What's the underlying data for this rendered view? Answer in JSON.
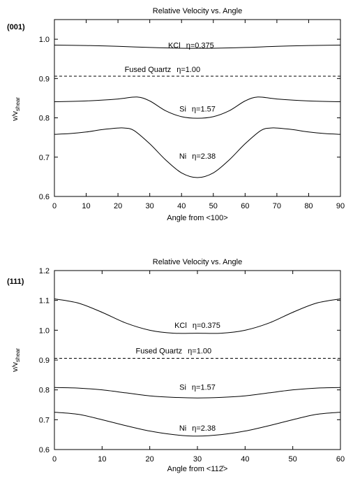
{
  "chart_data": [
    {
      "type": "line",
      "panel_label": "(001)",
      "title": "Relative Velocity vs. Angle",
      "xlabel": "Angle from <100>",
      "ylabel": {
        "main": "v/v",
        "sub": "shear"
      },
      "xlim": [
        0,
        90
      ],
      "ylim": [
        0.6,
        1.05
      ],
      "xticks": [
        "0",
        "10",
        "20",
        "30",
        "40",
        "50",
        "60",
        "70",
        "80",
        "90"
      ],
      "yticks": [
        "0.6",
        "0.7",
        "0.8",
        "0.9",
        "1.0"
      ],
      "grid": false,
      "series": [
        {
          "name": "KCl",
          "eta_label": "η=0.375",
          "dashed": false,
          "x": [
            0,
            10,
            20,
            30,
            40,
            45,
            50,
            60,
            70,
            80,
            90
          ],
          "y": [
            0.985,
            0.984,
            0.982,
            0.979,
            0.977,
            0.977,
            0.977,
            0.979,
            0.982,
            0.984,
            0.985
          ],
          "label_at": [
            43,
            0.978
          ]
        },
        {
          "name": "Fused Quartz",
          "eta_label": "η=1.00",
          "dashed": true,
          "x": [
            0,
            90
          ],
          "y": [
            0.906,
            0.906
          ],
          "label_at": [
            34,
            0.917
          ]
        },
        {
          "name": "Si",
          "eta_label": "η=1.57",
          "dashed": false,
          "x": [
            0,
            10,
            20,
            26,
            30,
            35,
            40,
            45,
            50,
            55,
            60,
            64,
            70,
            80,
            90
          ],
          "y": [
            0.841,
            0.843,
            0.848,
            0.853,
            0.843,
            0.818,
            0.803,
            0.799,
            0.803,
            0.818,
            0.843,
            0.853,
            0.848,
            0.843,
            0.841
          ],
          "label_at": [
            45,
            0.816
          ]
        },
        {
          "name": "Ni",
          "eta_label": "η=2.38",
          "dashed": false,
          "x": [
            0,
            5,
            10,
            15,
            20,
            22,
            25,
            30,
            35,
            40,
            45,
            50,
            55,
            60,
            65,
            68,
            70,
            75,
            80,
            85,
            90
          ],
          "y": [
            0.758,
            0.76,
            0.764,
            0.77,
            0.774,
            0.774,
            0.768,
            0.734,
            0.693,
            0.66,
            0.648,
            0.66,
            0.693,
            0.734,
            0.768,
            0.774,
            0.774,
            0.77,
            0.764,
            0.76,
            0.758
          ],
          "label_at": [
            45,
            0.696
          ]
        }
      ]
    },
    {
      "type": "line",
      "panel_label": "(111)",
      "title": "Relative Velocity vs. Angle",
      "xlabel": "Angle from <112̄>",
      "ylabel": {
        "main": "v/v",
        "sub": "shear"
      },
      "xlim": [
        0,
        60
      ],
      "ylim": [
        0.6,
        1.2
      ],
      "xticks": [
        "0",
        "10",
        "20",
        "30",
        "40",
        "50",
        "60"
      ],
      "yticks": [
        "0.6",
        "0.7",
        "0.8",
        "0.9",
        "1.0",
        "1.1",
        "1.2"
      ],
      "grid": false,
      "series": [
        {
          "name": "KCl",
          "eta_label": "η=0.375",
          "dashed": false,
          "x": [
            0,
            5,
            10,
            15,
            20,
            25,
            30,
            35,
            40,
            45,
            50,
            55,
            60
          ],
          "y": [
            1.105,
            1.091,
            1.06,
            1.024,
            1.0,
            0.99,
            0.99,
            0.99,
            1.0,
            1.024,
            1.06,
            1.091,
            1.105
          ],
          "label_at": [
            30,
            1.008
          ]
        },
        {
          "name": "Fused Quartz",
          "eta_label": "η=1.00",
          "dashed": true,
          "x": [
            0,
            60
          ],
          "y": [
            0.906,
            0.906
          ],
          "label_at": [
            25,
            0.922
          ]
        },
        {
          "name": "Si",
          "eta_label": "η=1.57",
          "dashed": false,
          "x": [
            0,
            5,
            10,
            15,
            20,
            25,
            30,
            35,
            40,
            45,
            50,
            55,
            60
          ],
          "y": [
            0.808,
            0.806,
            0.8,
            0.79,
            0.78,
            0.775,
            0.773,
            0.775,
            0.78,
            0.79,
            0.8,
            0.806,
            0.808
          ],
          "label_at": [
            30,
            0.8
          ]
        },
        {
          "name": "Ni",
          "eta_label": "η=2.38",
          "dashed": false,
          "x": [
            0,
            5,
            10,
            15,
            20,
            25,
            30,
            35,
            40,
            45,
            50,
            55,
            60
          ],
          "y": [
            0.725,
            0.718,
            0.7,
            0.68,
            0.662,
            0.65,
            0.645,
            0.65,
            0.662,
            0.68,
            0.7,
            0.718,
            0.725
          ],
          "label_at": [
            30,
            0.663
          ]
        }
      ]
    }
  ]
}
